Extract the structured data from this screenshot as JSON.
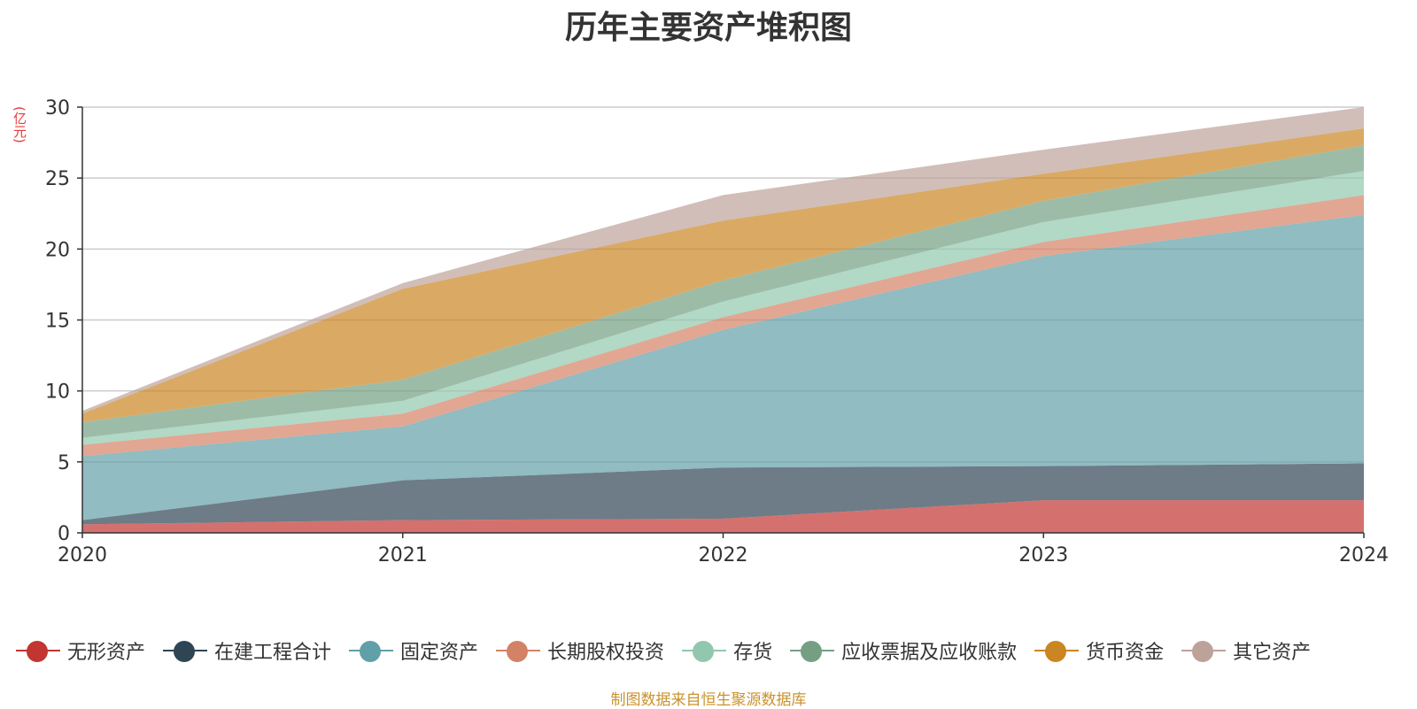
{
  "chart_data": {
    "type": "area",
    "stacked": true,
    "title": "历年主要资产堆积图",
    "ylabel": "(亿元)",
    "xlabel": "",
    "categories": [
      "2020",
      "2021",
      "2022",
      "2023",
      "2024"
    ],
    "ylim": [
      0,
      30
    ],
    "yticks": [
      0,
      5,
      10,
      15,
      20,
      25,
      30
    ],
    "grid": true,
    "legend_position": "bottom",
    "series": [
      {
        "name": "无形资产",
        "color": "#c23531",
        "values": [
          0.6,
          0.9,
          1.0,
          2.3,
          2.3
        ]
      },
      {
        "name": "在建工程合计",
        "color": "#2f4554",
        "values": [
          0.3,
          2.8,
          3.6,
          2.4,
          2.6
        ]
      },
      {
        "name": "固定资产",
        "color": "#61a0a8",
        "values": [
          4.5,
          3.8,
          9.7,
          14.8,
          17.5
        ]
      },
      {
        "name": "长期股权投资",
        "color": "#d48265",
        "values": [
          0.8,
          0.9,
          0.9,
          1.0,
          1.4
        ]
      },
      {
        "name": "存货",
        "color": "#91c7ae",
        "values": [
          0.5,
          0.9,
          1.1,
          1.4,
          1.7
        ]
      },
      {
        "name": "应收票据及应收账款",
        "color": "#749f83",
        "values": [
          1.1,
          1.5,
          1.5,
          1.5,
          1.8
        ]
      },
      {
        "name": "货币资金",
        "color": "#ca8622",
        "values": [
          0.6,
          6.4,
          4.2,
          1.9,
          1.2
        ]
      },
      {
        "name": "其它资产",
        "color": "#bda29a",
        "values": [
          0.2,
          0.4,
          1.8,
          1.7,
          1.5
        ]
      }
    ]
  },
  "source_note": "制图数据来自恒生聚源数据库"
}
